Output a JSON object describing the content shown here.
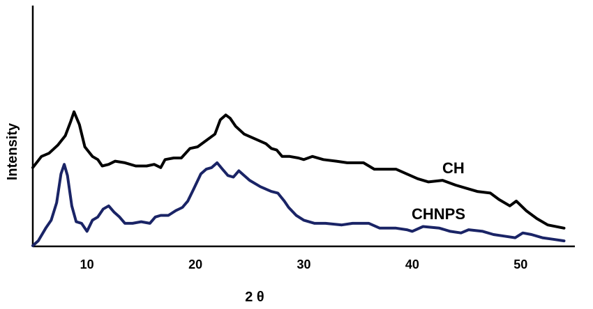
{
  "chart_data": {
    "type": "line",
    "xlabel": "2 θ",
    "ylabel": "Intensity",
    "xlim": [
      5,
      55
    ],
    "ylim": [
      0,
      100
    ],
    "y_ticks_shown": false,
    "x_ticks": [
      "10",
      "20",
      "30",
      "40",
      "50"
    ],
    "grid": false,
    "series": [
      {
        "name": "CH",
        "color": "#000000",
        "x": [
          5,
          5.8,
          6.5,
          7.3,
          8.0,
          8.5,
          8.8,
          9.3,
          9.8,
          10.5,
          11.0,
          11.4,
          12.0,
          12.6,
          13.5,
          14.5,
          15.5,
          16.2,
          16.8,
          17.2,
          18.0,
          18.7,
          19.5,
          20.2,
          21.0,
          21.8,
          22.3,
          22.8,
          23.2,
          23.7,
          24.5,
          25.5,
          26.5,
          27.0,
          27.5,
          28.0,
          28.7,
          29.5,
          30.0,
          30.8,
          31.8,
          33.0,
          34.0,
          35.5,
          36.5,
          37.5,
          38.5,
          39.5,
          40.5,
          41.5,
          42.8,
          44.0,
          45.0,
          46.0,
          47.2,
          48.0,
          49.0,
          49.6,
          50.5,
          51.5,
          52.5,
          54.0
        ],
        "values": [
          49,
          56,
          58,
          63,
          69,
          78,
          84,
          76,
          62,
          56,
          54,
          50,
          51,
          53,
          52,
          50,
          50,
          51,
          49,
          54,
          55,
          55,
          61,
          62,
          66,
          70,
          79,
          82,
          80,
          75,
          70,
          67,
          64,
          61,
          60,
          56,
          56,
          55,
          54,
          56,
          54,
          53,
          52,
          52,
          48,
          48,
          48,
          45,
          42,
          40,
          41,
          38,
          36,
          34,
          33,
          29,
          25,
          28,
          22,
          17,
          13,
          11
        ]
      },
      {
        "name": "CHNPS",
        "color": "#1a2466",
        "x": [
          5,
          5.5,
          6.2,
          6.7,
          7.2,
          7.6,
          7.9,
          8.2,
          8.6,
          9.0,
          9.5,
          10.0,
          10.5,
          11.0,
          11.5,
          12.0,
          12.5,
          13.0,
          13.5,
          14.2,
          15.0,
          15.8,
          16.3,
          16.8,
          17.5,
          18.2,
          18.8,
          19.3,
          19.8,
          20.5,
          21.0,
          21.5,
          22.0,
          22.5,
          23.0,
          23.5,
          24.0,
          24.5,
          25.0,
          26.0,
          27.0,
          27.6,
          28.2,
          28.6,
          29.3,
          30.0,
          31.0,
          32.0,
          33.5,
          34.5,
          36.0,
          37.0,
          38.5,
          39.5,
          40.0,
          41.0,
          42.5,
          43.5,
          44.5,
          45.2,
          46.5,
          47.5,
          48.5,
          49.5,
          50.2,
          51.0,
          52.0,
          53.0,
          54.0
        ],
        "values": [
          0,
          3,
          11,
          16,
          27,
          45,
          51,
          44,
          25,
          15,
          14,
          9,
          16,
          18,
          23,
          25,
          21,
          18,
          14,
          14,
          15,
          14,
          18,
          19,
          19,
          22,
          24,
          28,
          35,
          45,
          48,
          49,
          52,
          48,
          44,
          43,
          47,
          44,
          41,
          37,
          34,
          33,
          28,
          24,
          19,
          16,
          14,
          14,
          13,
          14,
          14,
          11,
          11,
          10,
          9,
          12,
          11,
          9,
          8,
          10,
          9,
          7,
          6,
          5,
          8,
          7,
          5,
          4,
          3
        ]
      }
    ],
    "annotations": [
      {
        "text": "CH",
        "series": "CH"
      },
      {
        "text": "CHNPS",
        "series": "CHNPS"
      }
    ]
  }
}
